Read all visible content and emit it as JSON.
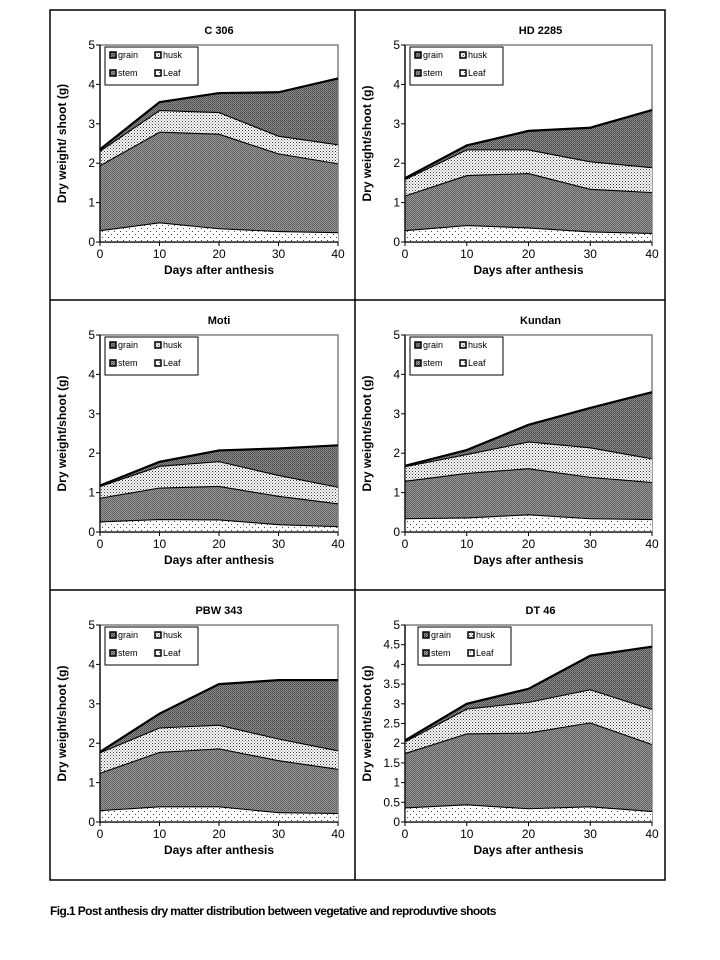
{
  "figure_caption": "Fig.1 Post anthesis dry matter distribution between vegetative and reproduvtive shoots",
  "colors": {
    "line": "#000000",
    "dense_fill": "#7a7a7a",
    "dot_fill": "#d8d8d8",
    "frame_axis": "#808080"
  },
  "chart_data": [
    {
      "type": "area",
      "stacked": true,
      "title": "C 306",
      "xlabel": "Days after anthesis",
      "ylabel": "Dry weight/ shoot (g)",
      "x": [
        0,
        10,
        20,
        30,
        40
      ],
      "xlim": [
        0,
        40
      ],
      "xticks": [
        "0",
        "10",
        "20",
        "30",
        "40"
      ],
      "ylim": [
        0,
        5
      ],
      "yticks": [
        "0",
        "1",
        "2",
        "3",
        "4",
        "5"
      ],
      "legend": "top-left",
      "grid": false,
      "legend_labels": [
        "grain",
        "husk",
        "stem",
        "Leaf"
      ],
      "series": [
        {
          "name": "Leaf",
          "values": [
            0.3,
            0.5,
            0.35,
            0.28,
            0.25
          ]
        },
        {
          "name": "stem",
          "values": [
            1.65,
            2.3,
            2.4,
            1.97,
            1.75
          ]
        },
        {
          "name": "husk",
          "values": [
            0.37,
            0.55,
            0.55,
            0.45,
            0.48
          ]
        },
        {
          "name": "grain",
          "values": [
            0.03,
            0.2,
            0.48,
            1.1,
            1.67
          ]
        }
      ]
    },
    {
      "type": "area",
      "stacked": true,
      "title": "HD 2285",
      "xlabel": "Days after anthesis",
      "ylabel": "Dry weight/shoot (g)",
      "x": [
        0,
        10,
        20,
        30,
        40
      ],
      "xlim": [
        0,
        40
      ],
      "xticks": [
        "0",
        "10",
        "20",
        "30",
        "40"
      ],
      "ylim": [
        0,
        5
      ],
      "yticks": [
        "0",
        "1",
        "2",
        "3",
        "4",
        "5"
      ],
      "legend": "top-left",
      "grid": false,
      "legend_labels": [
        "grain",
        "husk",
        "stem",
        "Leaf"
      ],
      "series": [
        {
          "name": "Leaf",
          "values": [
            0.3,
            0.43,
            0.37,
            0.27,
            0.23
          ]
        },
        {
          "name": "stem",
          "values": [
            0.88,
            1.27,
            1.38,
            1.08,
            1.04
          ]
        },
        {
          "name": "husk",
          "values": [
            0.42,
            0.65,
            0.6,
            0.7,
            0.63
          ]
        },
        {
          "name": "grain",
          "values": [
            0.02,
            0.1,
            0.47,
            0.85,
            1.45
          ]
        }
      ]
    },
    {
      "type": "area",
      "stacked": true,
      "title": "Moti",
      "xlabel": "Days after anthesis",
      "ylabel": "Dry weight/shoot (g)",
      "x": [
        0,
        10,
        20,
        30,
        40
      ],
      "xlim": [
        0,
        40
      ],
      "xticks": [
        "0",
        "10",
        "20",
        "30",
        "40"
      ],
      "ylim": [
        0,
        5
      ],
      "yticks": [
        "0",
        "1",
        "2",
        "3",
        "4",
        "5"
      ],
      "legend": "top-left",
      "grid": false,
      "legend_labels": [
        "grain",
        "husk",
        "stem",
        "Leaf"
      ],
      "series": [
        {
          "name": "Leaf",
          "values": [
            0.27,
            0.33,
            0.32,
            0.2,
            0.15
          ]
        },
        {
          "name": "stem",
          "values": [
            0.6,
            0.8,
            0.85,
            0.72,
            0.58
          ]
        },
        {
          "name": "husk",
          "values": [
            0.3,
            0.55,
            0.63,
            0.53,
            0.42
          ]
        },
        {
          "name": "grain",
          "values": [
            0.01,
            0.1,
            0.27,
            0.67,
            1.05
          ]
        }
      ]
    },
    {
      "type": "area",
      "stacked": true,
      "title": "Kundan",
      "xlabel": "Days after anthesis",
      "ylabel": "Dry weight/shoot (g)",
      "x": [
        0,
        10,
        20,
        30,
        40
      ],
      "xlim": [
        0,
        40
      ],
      "xticks": [
        "0",
        "10",
        "20",
        "30",
        "40"
      ],
      "ylim": [
        0,
        5
      ],
      "yticks": [
        "0",
        "1",
        "2",
        "3",
        "4",
        "5"
      ],
      "legend": "top-left",
      "grid": false,
      "legend_labels": [
        "grain",
        "husk",
        "stem",
        "Leaf"
      ],
      "series": [
        {
          "name": "Leaf",
          "values": [
            0.35,
            0.37,
            0.45,
            0.35,
            0.33
          ]
        },
        {
          "name": "stem",
          "values": [
            0.95,
            1.13,
            1.17,
            1.05,
            0.94
          ]
        },
        {
          "name": "husk",
          "values": [
            0.37,
            0.48,
            0.68,
            0.75,
            0.6
          ]
        },
        {
          "name": "grain",
          "values": [
            0.01,
            0.1,
            0.42,
            1.0,
            1.68
          ]
        }
      ]
    },
    {
      "type": "area",
      "stacked": true,
      "title": "PBW 343",
      "xlabel": "Days after anthesis",
      "ylabel": "Dry weight/shoot (g)",
      "x": [
        0,
        10,
        20,
        30,
        40
      ],
      "xlim": [
        0,
        40
      ],
      "xticks": [
        "0",
        "10",
        "20",
        "30",
        "40"
      ],
      "ylim": [
        0,
        5
      ],
      "yticks": [
        "0",
        "1",
        "2",
        "3",
        "4",
        "5"
      ],
      "legend": "top-left",
      "grid": false,
      "legend_labels": [
        "grain",
        "husk",
        "stem",
        "Leaf"
      ],
      "series": [
        {
          "name": "Leaf",
          "values": [
            0.3,
            0.4,
            0.4,
            0.25,
            0.23
          ]
        },
        {
          "name": "stem",
          "values": [
            0.95,
            1.38,
            1.47,
            1.32,
            1.12
          ]
        },
        {
          "name": "husk",
          "values": [
            0.52,
            0.62,
            0.6,
            0.55,
            0.47
          ]
        },
        {
          "name": "grain",
          "values": [
            0.01,
            0.35,
            1.03,
            1.48,
            1.78
          ]
        }
      ]
    },
    {
      "type": "area",
      "stacked": true,
      "title": "DT 46",
      "xlabel": "Days after anthesis",
      "ylabel": "Dry weight/shoot (g)",
      "x": [
        0,
        10,
        20,
        30,
        40
      ],
      "xlim": [
        0,
        40
      ],
      "xticks": [
        "0",
        "10",
        "20",
        "30",
        "40"
      ],
      "ylim": [
        0,
        5
      ],
      "yticks": [
        "0",
        "0.5",
        "1",
        "1.5",
        "2",
        "2.5",
        "3",
        "3.5",
        "4",
        "4.5",
        "5"
      ],
      "legend": "top-center",
      "grid": false,
      "legend_labels": [
        "grain",
        "husk",
        "stem",
        "Leaf"
      ],
      "series": [
        {
          "name": "Leaf",
          "values": [
            0.37,
            0.45,
            0.35,
            0.4,
            0.28
          ]
        },
        {
          "name": "stem",
          "values": [
            1.38,
            1.8,
            1.92,
            2.13,
            1.7
          ]
        },
        {
          "name": "husk",
          "values": [
            0.3,
            0.63,
            0.78,
            0.84,
            0.89
          ]
        },
        {
          "name": "grain",
          "values": [
            0.02,
            0.12,
            0.33,
            0.85,
            1.58
          ]
        }
      ]
    }
  ]
}
